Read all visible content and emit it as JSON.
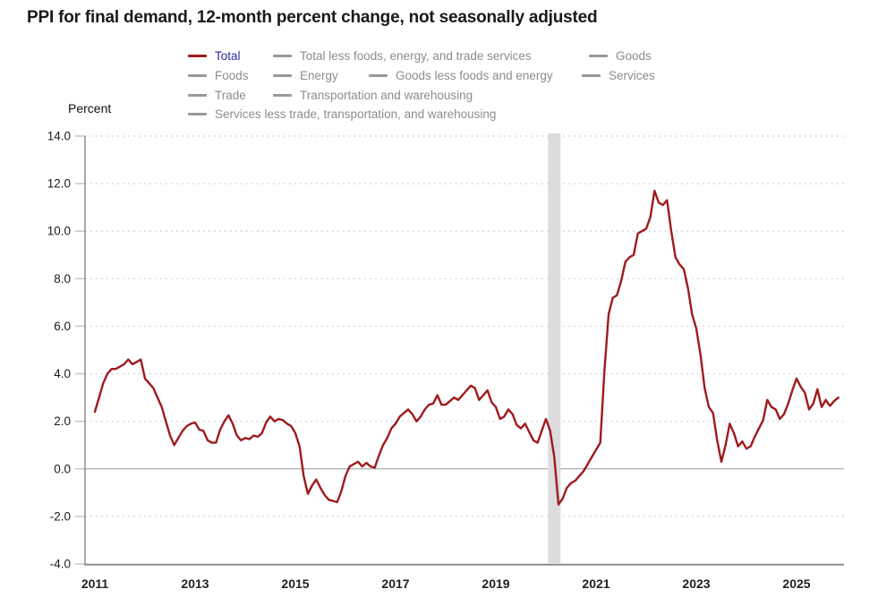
{
  "title": "PPI for final demand, 12-month percent change, not seasonally adjusted",
  "y_axis_title": "Percent",
  "legend": {
    "selected": "Total",
    "rows": [
      [
        {
          "label": "Total",
          "active": true
        },
        {
          "label": "Total less foods, energy, and trade services",
          "active": false
        },
        {
          "label": "Goods",
          "active": false
        }
      ],
      [
        {
          "label": "Foods",
          "active": false
        },
        {
          "label": "Energy",
          "active": false
        },
        {
          "label": "Goods less foods and energy",
          "active": false
        },
        {
          "label": "Services",
          "active": false
        }
      ],
      [
        {
          "label": "Trade",
          "active": false
        },
        {
          "label": "Transportation and warehousing",
          "active": false
        }
      ],
      [
        {
          "label": "Services less trade, transportation, and warehousing",
          "active": false
        }
      ]
    ]
  },
  "colors": {
    "line": "#9e1b1e",
    "legend_text": "#8c8c8c",
    "legend_swatch": "#999999",
    "selected_label": "#2b2ba3",
    "band": "#dcdcdc",
    "grid_dotted": "#c9c9c9",
    "grid_zero": "#ababab",
    "axis": "#8c8c8c",
    "tick": "#b5c9df"
  },
  "chart_data": {
    "type": "line",
    "title": "PPI for final demand, 12-month percent change, not seasonally adjusted",
    "ylabel": "Percent",
    "ylim": [
      -4,
      14
    ],
    "yticks": [
      14,
      12,
      10,
      8,
      6,
      4,
      2,
      0,
      -2,
      -4
    ],
    "ytick_labels": [
      "14.0",
      "12.0",
      "10.0",
      "8.0",
      "6.0",
      "4.0",
      "2.0",
      "0.0",
      "-2.0",
      "-4.0"
    ],
    "xtick_years": [
      2011,
      2013,
      2015,
      2017,
      2019,
      2021,
      2023,
      2025
    ],
    "xtick_labels": [
      "2011",
      "2013",
      "2015",
      "2017",
      "2019",
      "2021",
      "2023",
      "2025"
    ],
    "x_start": "2011-01",
    "x_end": "2025-11",
    "frequency": "monthly",
    "grid": "horizontal-dotted",
    "legend_position": "top",
    "recession_band": {
      "from": "2020-02",
      "to": "2020-04"
    },
    "series": [
      {
        "name": "Total",
        "values": [
          2.4,
          3.0,
          3.6,
          4.0,
          4.2,
          4.2,
          4.3,
          4.4,
          4.6,
          4.4,
          4.5,
          4.6,
          3.8,
          3.6,
          3.4,
          3.0,
          2.6,
          2.0,
          1.4,
          1.0,
          1.3,
          1.6,
          1.8,
          1.9,
          1.95,
          1.65,
          1.6,
          1.2,
          1.1,
          1.1,
          1.65,
          2.0,
          2.25,
          1.9,
          1.4,
          1.2,
          1.3,
          1.25,
          1.4,
          1.35,
          1.5,
          1.95,
          2.2,
          2.0,
          2.1,
          2.05,
          1.9,
          1.8,
          1.5,
          0.95,
          -0.3,
          -1.05,
          -0.7,
          -0.45,
          -0.8,
          -1.1,
          -1.3,
          -1.35,
          -1.4,
          -0.95,
          -0.3,
          0.1,
          0.2,
          0.3,
          0.1,
          0.25,
          0.1,
          0.05,
          0.55,
          1.0,
          1.3,
          1.7,
          1.9,
          2.2,
          2.35,
          2.5,
          2.3,
          2.0,
          2.2,
          2.5,
          2.7,
          2.75,
          3.1,
          2.7,
          2.7,
          2.85,
          3.0,
          2.9,
          3.1,
          3.3,
          3.5,
          3.4,
          2.9,
          3.1,
          3.3,
          2.8,
          2.6,
          2.1,
          2.2,
          2.5,
          2.3,
          1.85,
          1.7,
          1.9,
          1.55,
          1.2,
          1.1,
          1.6,
          2.1,
          1.6,
          0.5,
          -1.5,
          -1.25,
          -0.8,
          -0.6,
          -0.5,
          -0.3,
          -0.1,
          0.2,
          0.5,
          0.8,
          1.1,
          4.1,
          6.5,
          7.2,
          7.3,
          7.9,
          8.7,
          8.9,
          9.0,
          9.9,
          10.0,
          10.1,
          10.6,
          11.7,
          11.2,
          11.1,
          11.3,
          10.0,
          8.9,
          8.6,
          8.4,
          7.6,
          6.5,
          5.9,
          4.8,
          3.4,
          2.6,
          2.35,
          1.2,
          0.3,
          1.0,
          1.9,
          1.5,
          0.95,
          1.15,
          0.85,
          0.95,
          1.35,
          1.7,
          2.05,
          2.9,
          2.6,
          2.5,
          2.1,
          2.3,
          2.75,
          3.3,
          3.8,
          3.45,
          3.2,
          2.5,
          2.75,
          3.35,
          2.6,
          2.9,
          2.65,
          2.85,
          3.0
        ]
      }
    ]
  }
}
